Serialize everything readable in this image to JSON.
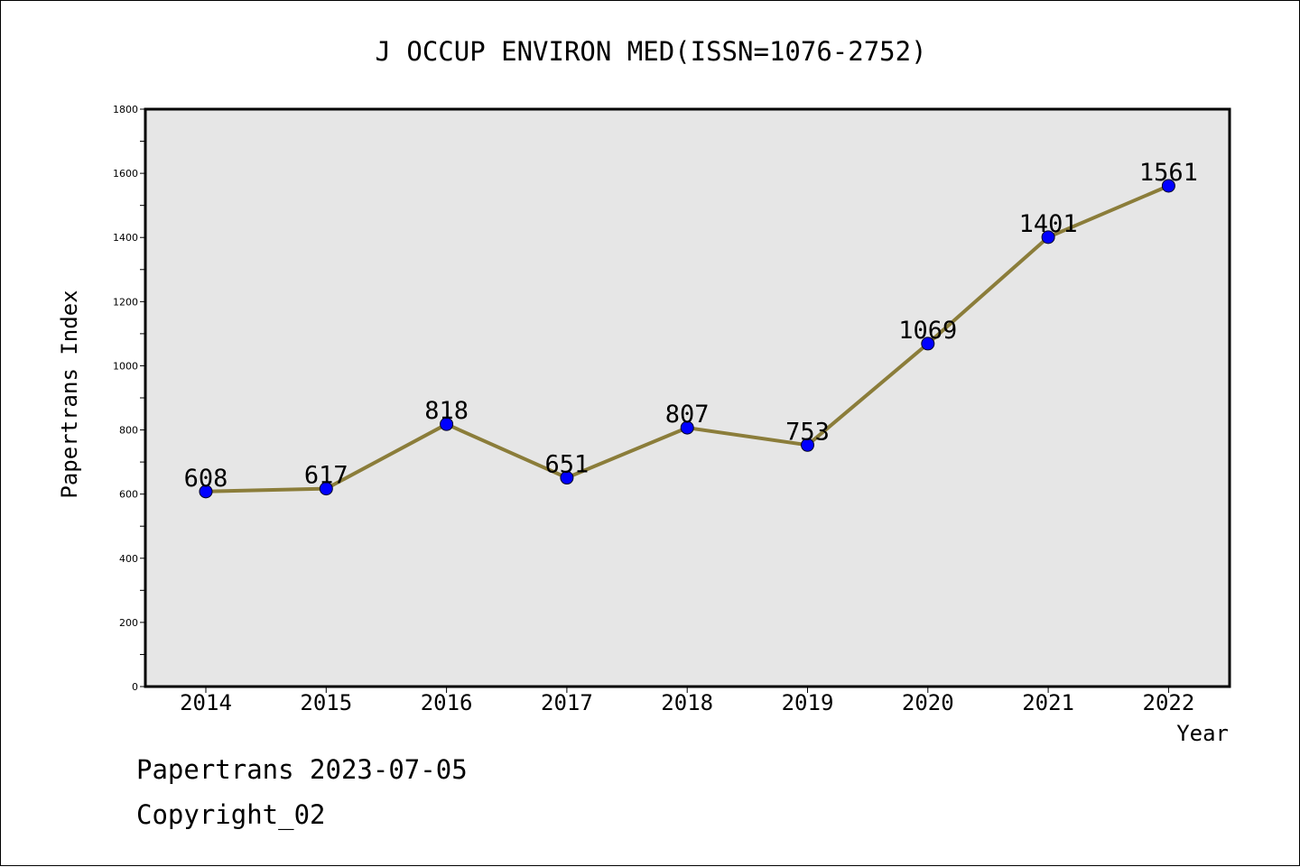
{
  "chart_data": {
    "type": "line",
    "title": "J OCCUP ENVIRON MED(ISSN=1076-2752)",
    "xlabel": "Year",
    "ylabel": "Papertrans Index",
    "categories": [
      "2014",
      "2015",
      "2016",
      "2017",
      "2018",
      "2019",
      "2020",
      "2021",
      "2022"
    ],
    "series": [
      {
        "values": [
          608,
          617,
          818,
          651,
          807,
          753,
          1069,
          1401,
          1561
        ]
      }
    ],
    "data_labels": [
      "608",
      "617",
      "818",
      "651",
      "807",
      "753",
      "1069",
      "1401",
      "1561"
    ],
    "ylim": [
      0,
      1800
    ],
    "y_ticks": [
      0,
      200,
      400,
      600,
      800,
      1000,
      1200,
      1400,
      1600,
      1800
    ],
    "y_tick_labels": [
      "0",
      "200",
      "400",
      "600",
      "800",
      "1000",
      "1200",
      "1400",
      "1600",
      "1800"
    ],
    "grid": false,
    "colors": {
      "plot_background": "#e6e6e6",
      "line": "#8b7d3a",
      "marker": "#0000ff",
      "axes": "#000000"
    }
  },
  "footer": {
    "source": "Papertrans 2023-07-05",
    "copyright": "Copyright_02"
  }
}
